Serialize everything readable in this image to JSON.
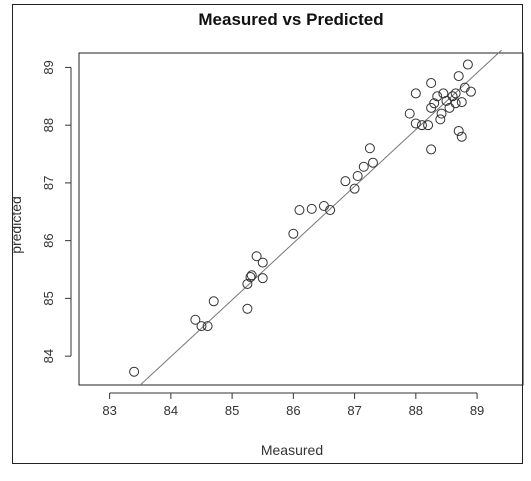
{
  "chart_data": {
    "type": "scatter",
    "title": "Measured vs Predicted",
    "xlabel": "Measured",
    "ylabel": "predicted",
    "xlim": [
      82.5,
      89.75
    ],
    "ylim": [
      83.5,
      89.25
    ],
    "xticks": [
      "83",
      "84",
      "85",
      "86",
      "87",
      "88",
      "89"
    ],
    "yticks": [
      "84",
      "85",
      "86",
      "87",
      "88",
      "89"
    ],
    "grid": false,
    "legend": "none",
    "marker": "open-circle",
    "point_color": "#333333",
    "line_color": "#777777",
    "fit_line": {
      "x": [
        83.5,
        89.4
      ],
      "y": [
        83.5,
        89.3
      ]
    },
    "series": [
      {
        "points": [
          [
            83.4,
            83.73
          ],
          [
            84.4,
            84.63
          ],
          [
            84.5,
            84.52
          ],
          [
            84.6,
            84.52
          ],
          [
            84.7,
            84.95
          ],
          [
            85.25,
            84.82
          ],
          [
            85.25,
            85.25
          ],
          [
            85.3,
            85.37
          ],
          [
            85.32,
            85.4
          ],
          [
            85.4,
            85.73
          ],
          [
            85.5,
            85.35
          ],
          [
            85.5,
            85.62
          ],
          [
            86.0,
            86.12
          ],
          [
            86.1,
            86.53
          ],
          [
            86.3,
            86.55
          ],
          [
            86.5,
            86.6
          ],
          [
            86.6,
            86.53
          ],
          [
            86.85,
            87.03
          ],
          [
            87.0,
            86.9
          ],
          [
            87.05,
            87.12
          ],
          [
            87.15,
            87.28
          ],
          [
            87.25,
            87.6
          ],
          [
            87.3,
            87.35
          ],
          [
            87.9,
            88.2
          ],
          [
            88.0,
            88.55
          ],
          [
            88.0,
            88.03
          ],
          [
            88.1,
            88.0
          ],
          [
            88.2,
            88.0
          ],
          [
            88.25,
            88.73
          ],
          [
            88.25,
            88.3
          ],
          [
            88.25,
            87.58
          ],
          [
            88.3,
            88.38
          ],
          [
            88.35,
            88.5
          ],
          [
            88.4,
            88.1
          ],
          [
            88.42,
            88.2
          ],
          [
            88.45,
            88.55
          ],
          [
            88.5,
            88.42
          ],
          [
            88.55,
            88.3
          ],
          [
            88.6,
            88.5
          ],
          [
            88.65,
            88.38
          ],
          [
            88.65,
            88.55
          ],
          [
            88.7,
            88.85
          ],
          [
            88.7,
            87.9
          ],
          [
            88.75,
            87.8
          ],
          [
            88.75,
            88.4
          ],
          [
            88.8,
            88.65
          ],
          [
            88.85,
            89.05
          ],
          [
            88.9,
            88.58
          ]
        ]
      }
    ]
  }
}
